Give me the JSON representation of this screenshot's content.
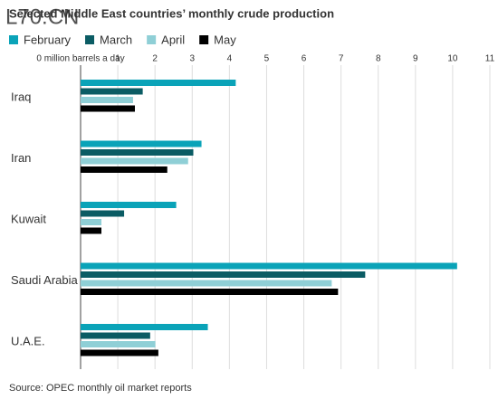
{
  "chart_data": {
    "type": "bar",
    "orientation": "horizontal",
    "title": "Selected Middle East countries’ monthly crude production",
    "watermark": "L70.CN",
    "source": "Source: OPEC monthly oil market reports",
    "categories": [
      "Iraq",
      "Iran",
      "Kuwait",
      "Saudi Arabia",
      "U.A.E."
    ],
    "series": [
      {
        "name": "February",
        "color": "#0aa3b8",
        "values": [
          4.17,
          3.25,
          2.57,
          10.12,
          3.42
        ]
      },
      {
        "name": "March",
        "color": "#0b5c64",
        "values": [
          1.67,
          3.03,
          1.17,
          7.65,
          1.87
        ]
      },
      {
        "name": "April",
        "color": "#8fcfd6",
        "values": [
          1.41,
          2.89,
          0.56,
          6.75,
          2.01
        ]
      },
      {
        "name": "May",
        "color": "#000000",
        "values": [
          1.46,
          2.33,
          0.56,
          6.92,
          2.09
        ]
      }
    ],
    "xlim": [
      0,
      11
    ],
    "xticks": [
      {
        "value": 0,
        "label": "0 million barrels a day"
      },
      1,
      2,
      3,
      4,
      5,
      6,
      7,
      8,
      9,
      10,
      11
    ],
    "grid": true
  }
}
